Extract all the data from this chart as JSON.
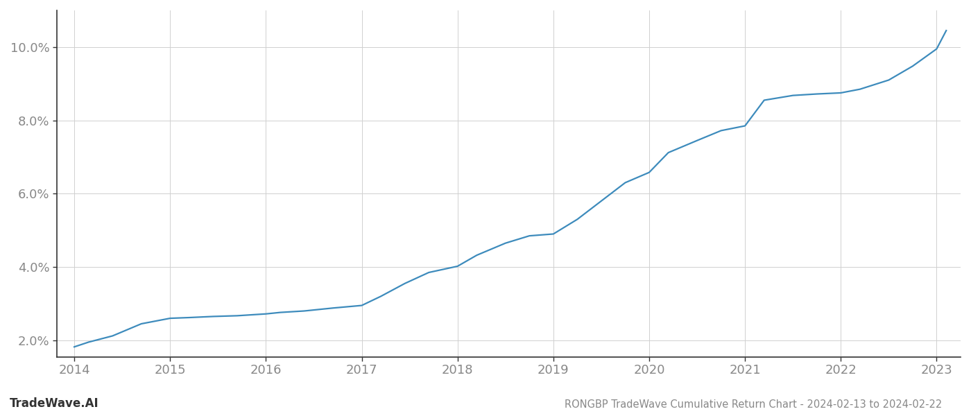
{
  "x_years": [
    2014.0,
    2014.15,
    2014.4,
    2014.7,
    2015.0,
    2015.2,
    2015.45,
    2015.7,
    2016.0,
    2016.15,
    2016.4,
    2016.7,
    2017.0,
    2017.2,
    2017.45,
    2017.7,
    2018.0,
    2018.2,
    2018.5,
    2018.75,
    2019.0,
    2019.25,
    2019.5,
    2019.75,
    2020.0,
    2020.2,
    2020.5,
    2020.75,
    2021.0,
    2021.2,
    2021.5,
    2021.75,
    2022.0,
    2022.2,
    2022.5,
    2022.75,
    2023.0,
    2023.1
  ],
  "y_values": [
    1.82,
    1.95,
    2.12,
    2.45,
    2.6,
    2.62,
    2.65,
    2.67,
    2.72,
    2.76,
    2.8,
    2.88,
    2.95,
    3.2,
    3.55,
    3.85,
    4.02,
    4.32,
    4.65,
    4.85,
    4.9,
    5.3,
    5.8,
    6.3,
    6.58,
    7.12,
    7.45,
    7.72,
    7.85,
    8.55,
    8.68,
    8.72,
    8.75,
    8.85,
    9.1,
    9.48,
    9.95,
    10.45
  ],
  "line_color": "#3d8bbc",
  "line_width": 1.6,
  "background_color": "#ffffff",
  "grid_color": "#d0d0d0",
  "tick_color": "#888888",
  "title": "RONGBP TradeWave Cumulative Return Chart - 2024-02-13 to 2024-02-22",
  "watermark": "TradeWave.AI",
  "yticks": [
    2.0,
    4.0,
    6.0,
    8.0,
    10.0
  ],
  "ytick_labels": [
    "2.0%",
    "4.0%",
    "6.0%",
    "8.0%",
    "10.0%"
  ],
  "xticks": [
    2014,
    2015,
    2016,
    2017,
    2018,
    2019,
    2020,
    2021,
    2022,
    2023
  ],
  "xlim": [
    2013.82,
    2023.25
  ],
  "ylim": [
    1.55,
    11.0
  ],
  "title_fontsize": 10.5,
  "watermark_fontsize": 12,
  "tick_fontsize": 13,
  "left_spine_color": "#333333",
  "bottom_spine_color": "#333333"
}
